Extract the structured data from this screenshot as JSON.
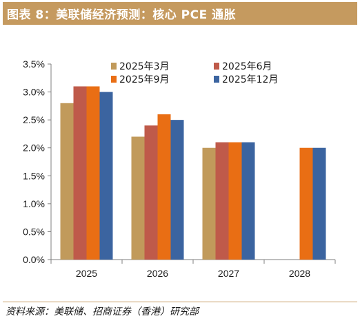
{
  "header": {
    "title": "图表 8：美联储经济预测：核心 PCE 通胀"
  },
  "footer": {
    "source": "资料来源：美联储、招商证券（香港）研究部"
  },
  "colors": {
    "header_bg": "#c59a5f",
    "axis": "#7f7f7f"
  },
  "chart_data": {
    "type": "bar",
    "categories": [
      "2025",
      "2026",
      "2027",
      "2028"
    ],
    "series": [
      {
        "name": "2025年3月",
        "color": "#c19a5b",
        "values": [
          2.8,
          2.2,
          2.0,
          null
        ]
      },
      {
        "name": "2025年6月",
        "color": "#bf5a4a",
        "values": [
          3.1,
          2.4,
          2.1,
          null
        ]
      },
      {
        "name": "2025年9月",
        "color": "#e96e14",
        "values": [
          3.1,
          2.6,
          2.1,
          2.0
        ]
      },
      {
        "name": "2025年12月",
        "color": "#3b64a0",
        "values": [
          3.0,
          2.5,
          2.1,
          2.0
        ]
      }
    ],
    "ylim": [
      0,
      3.5
    ],
    "yticks": [
      "0.0%",
      "0.5%",
      "1.0%",
      "1.5%",
      "2.0%",
      "2.5%",
      "3.0%",
      "3.5%"
    ],
    "ytick_values": [
      0,
      0.5,
      1.0,
      1.5,
      2.0,
      2.5,
      3.0,
      3.5
    ],
    "title": "",
    "xlabel": "",
    "ylabel": "",
    "grid": false,
    "legend": "top-right"
  }
}
